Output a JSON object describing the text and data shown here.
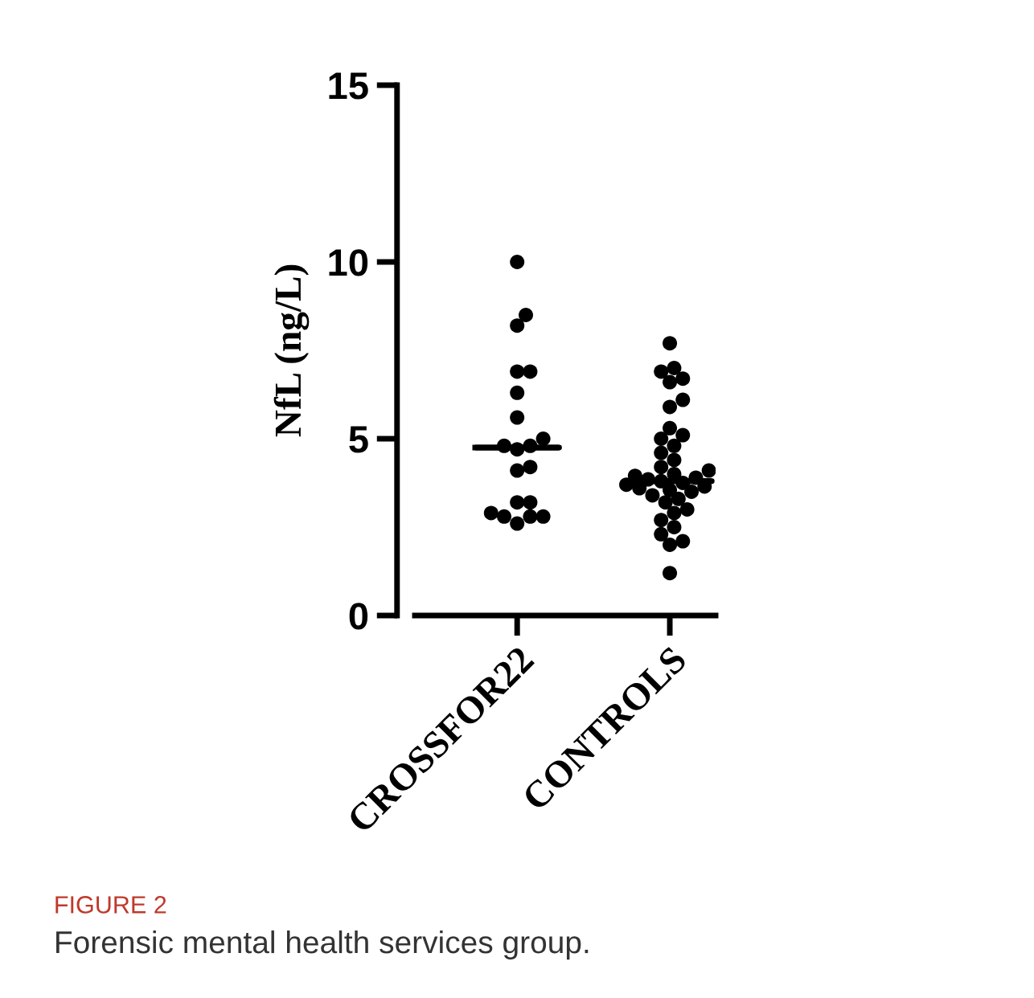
{
  "chart_data": {
    "type": "box",
    "ylabel": "NfL (ng/L)",
    "categories": [
      "CROSSFOR22",
      "CONTROLS"
    ],
    "ylim": [
      0,
      15
    ],
    "yticks": [
      0,
      5,
      10,
      15
    ],
    "grid": false,
    "legend": false,
    "boxes": [
      {
        "low": 4.75,
        "q1": 4.75,
        "median": 4.75,
        "q3": 4.75,
        "high": 4.75
      },
      {
        "low": 3.8,
        "q1": 3.8,
        "median": 3.8,
        "q3": 3.8,
        "high": 3.8
      }
    ],
    "series": [
      {
        "type": "scatter",
        "color": "#000000",
        "marker": "circle",
        "x": [
          "CROSSFOR22",
          "CROSSFOR22",
          "CROSSFOR22",
          "CROSSFOR22",
          "CROSSFOR22",
          "CROSSFOR22",
          "CROSSFOR22",
          "CROSSFOR22",
          "CROSSFOR22",
          "CROSSFOR22",
          "CROSSFOR22",
          "CROSSFOR22",
          "CROSSFOR22",
          "CROSSFOR22",
          "CROSSFOR22",
          "CROSSFOR22",
          "CROSSFOR22",
          "CROSSFOR22",
          "CROSSFOR22",
          "CROSSFOR22"
        ],
        "values": [
          10.0,
          8.5,
          8.2,
          6.9,
          6.9,
          6.3,
          5.6,
          5.0,
          4.8,
          4.8,
          4.7,
          4.2,
          4.1,
          3.2,
          3.2,
          2.8,
          2.8,
          2.9,
          2.8,
          2.6
        ]
      },
      {
        "type": "scatter",
        "color": "#000000",
        "marker": "circle",
        "x": [
          "CONTROLS",
          "CONTROLS",
          "CONTROLS",
          "CONTROLS",
          "CONTROLS",
          "CONTROLS",
          "CONTROLS",
          "CONTROLS",
          "CONTROLS",
          "CONTROLS",
          "CONTROLS",
          "CONTROLS",
          "CONTROLS",
          "CONTROLS",
          "CONTROLS",
          "CONTROLS",
          "CONTROLS",
          "CONTROLS",
          "CONTROLS",
          "CONTROLS",
          "CONTROLS",
          "CONTROLS",
          "CONTROLS",
          "CONTROLS",
          "CONTROLS",
          "CONTROLS",
          "CONTROLS",
          "CONTROLS",
          "CONTROLS",
          "CONTROLS",
          "CONTROLS",
          "CONTROLS",
          "CONTROLS",
          "CONTROLS",
          "CONTROLS",
          "CONTROLS",
          "CONTROLS"
        ],
        "values": [
          7.7,
          7.0,
          6.9,
          6.7,
          6.6,
          6.1,
          5.9,
          5.3,
          5.1,
          5.0,
          4.8,
          4.6,
          4.4,
          4.2,
          4.1,
          4.0,
          3.95,
          3.9,
          3.85,
          3.8,
          3.75,
          3.7,
          3.65,
          3.6,
          3.55,
          3.5,
          3.4,
          3.3,
          3.2,
          3.0,
          2.9,
          2.7,
          2.5,
          2.3,
          2.1,
          2.0,
          1.2
        ]
      }
    ],
    "annotations": [
      "FIGURE 2",
      "Forensic mental health services group."
    ]
  }
}
